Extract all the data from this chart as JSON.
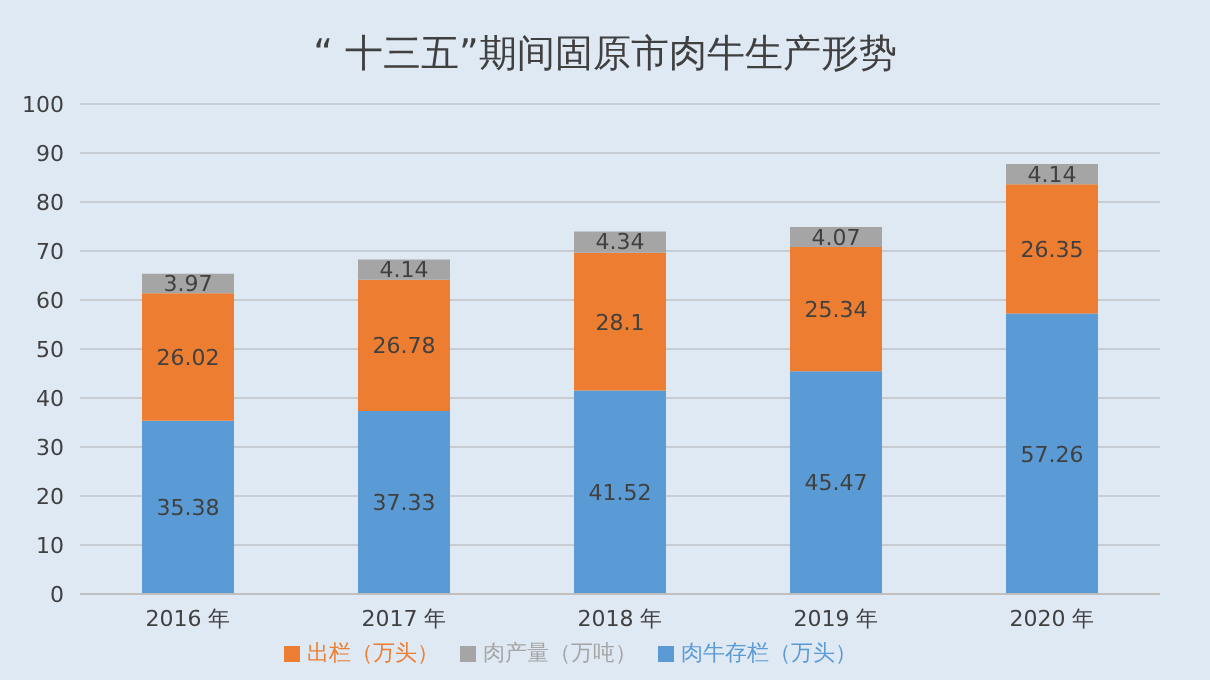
{
  "chart_data": {
    "type": "bar",
    "title": "“ 十三五”期间固原市肉牛生产形势",
    "categories": [
      "2016 年",
      "2017 年",
      "2018 年",
      "2019 年",
      "2020 年"
    ],
    "stacked": true,
    "data_labels": true,
    "ylim": [
      0,
      100
    ],
    "yticks": [
      0,
      10,
      20,
      30,
      40,
      50,
      60,
      70,
      80,
      90,
      100
    ],
    "grid": "y",
    "legend": "bottom",
    "series": [
      {
        "name": "肉牛存栏（万头）",
        "color": "#5b9bd5",
        "values": [
          35.38,
          37.33,
          41.52,
          45.47,
          57.26
        ]
      },
      {
        "name": "出栏（万头）",
        "color": "#ed7d31",
        "values": [
          26.02,
          26.78,
          28.1,
          25.34,
          26.35
        ]
      },
      {
        "name": "肉产量（万吨）",
        "color": "#a5a5a5",
        "values": [
          3.97,
          4.14,
          4.34,
          4.07,
          4.14
        ]
      }
    ]
  }
}
